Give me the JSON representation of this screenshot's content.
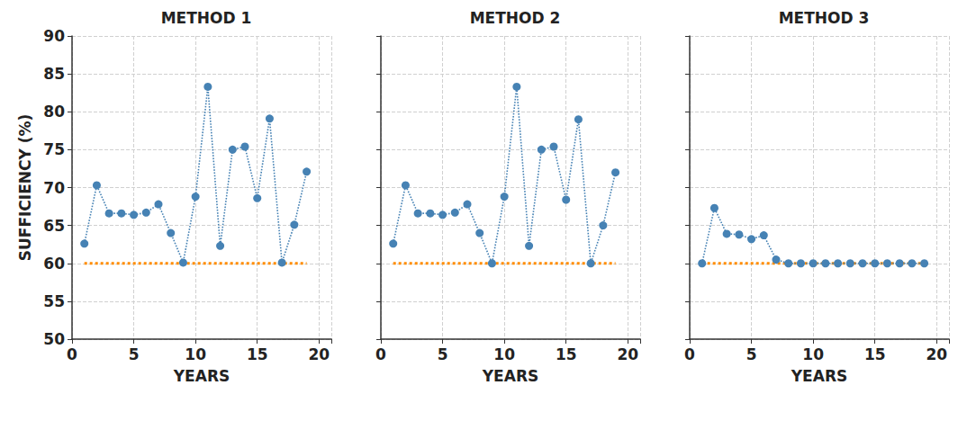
{
  "chart_data": [
    {
      "type": "line",
      "title": "METHOD 1",
      "x_label": "YEARS",
      "y_label": "SUFFICIENCY (%)",
      "x": [
        1,
        2,
        3,
        4,
        5,
        6,
        7,
        8,
        9,
        10,
        11,
        12,
        13,
        14,
        15,
        16,
        17,
        18,
        19
      ],
      "series": [
        {
          "color": "#4682b4",
          "marker": "circle",
          "line_style": "dotted",
          "values": [
            62.6,
            70.3,
            66.6,
            66.6,
            66.4,
            66.7,
            67.8,
            64.0,
            60.1,
            68.8,
            83.3,
            62.3,
            75.0,
            75.4,
            68.6,
            79.1,
            60.1,
            65.1,
            72.1
          ]
        },
        {
          "color": "#ff8c00",
          "marker": "none",
          "line_style": "dotted",
          "values": [
            60,
            60,
            60,
            60,
            60,
            60,
            60,
            60,
            60,
            60,
            60,
            60,
            60,
            60,
            60,
            60,
            60,
            60,
            60
          ]
        }
      ],
      "xlim": [
        0,
        21
      ],
      "xticks": [
        0,
        5,
        10,
        15,
        20
      ],
      "ylim": [
        50,
        90
      ],
      "yticks": [
        50,
        55,
        60,
        65,
        70,
        75,
        80,
        85,
        90
      ],
      "grid": true
    },
    {
      "type": "line",
      "title": "METHOD 2",
      "x_label": "YEARS",
      "x": [
        1,
        2,
        3,
        4,
        5,
        6,
        7,
        8,
        9,
        10,
        11,
        12,
        13,
        14,
        15,
        16,
        17,
        18,
        19
      ],
      "series": [
        {
          "color": "#4682b4",
          "marker": "circle",
          "line_style": "dotted",
          "values": [
            62.6,
            70.3,
            66.6,
            66.6,
            66.4,
            66.7,
            67.8,
            64.0,
            60.0,
            68.8,
            83.3,
            62.3,
            75.0,
            75.4,
            68.4,
            79.0,
            60.0,
            65.0,
            72.0
          ]
        },
        {
          "color": "#ff8c00",
          "marker": "none",
          "line_style": "dotted",
          "values": [
            60,
            60,
            60,
            60,
            60,
            60,
            60,
            60,
            60,
            60,
            60,
            60,
            60,
            60,
            60,
            60,
            60,
            60,
            60
          ]
        }
      ],
      "xlim": [
        0,
        21
      ],
      "xticks": [
        0,
        5,
        10,
        15,
        20
      ],
      "ylim": [
        50,
        90
      ],
      "yticks": [
        50,
        55,
        60,
        65,
        70,
        75,
        80,
        85,
        90
      ],
      "grid": true,
      "tick_labels": "x"
    },
    {
      "type": "line",
      "title": "METHOD 3",
      "x_label": "YEARS",
      "x": [
        1,
        2,
        3,
        4,
        5,
        6,
        7,
        8,
        9,
        10,
        11,
        12,
        13,
        14,
        15,
        16,
        17,
        18,
        19
      ],
      "series": [
        {
          "color": "#4682b4",
          "marker": "circle",
          "line_style": "dotted",
          "values": [
            60.0,
            67.3,
            63.9,
            63.8,
            63.2,
            63.7,
            60.5,
            60.0,
            60.0,
            60.0,
            60.0,
            60.0,
            60.0,
            60.0,
            60.0,
            60.0,
            60.0,
            60.0,
            60.0
          ]
        },
        {
          "color": "#ff8c00",
          "marker": "none",
          "line_style": "dotted",
          "values": [
            60,
            60,
            60,
            60,
            60,
            60,
            60,
            60,
            60,
            60,
            60,
            60,
            60,
            60,
            60,
            60,
            60,
            60,
            60
          ]
        }
      ],
      "xlim": [
        0,
        21
      ],
      "xticks": [
        0,
        5,
        10,
        15,
        20
      ],
      "ylim": [
        50,
        90
      ],
      "yticks": [
        50,
        55,
        60,
        65,
        70,
        75,
        80,
        85,
        90
      ],
      "grid": true,
      "tick_labels": "x"
    }
  ]
}
